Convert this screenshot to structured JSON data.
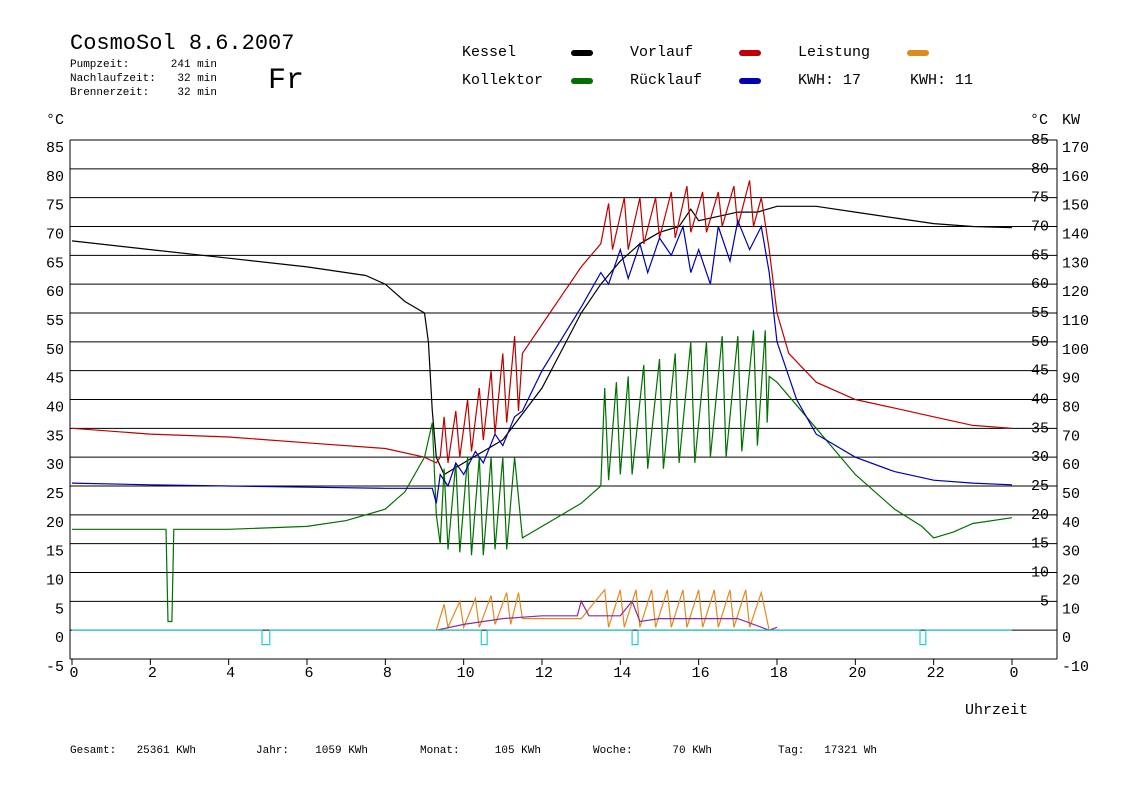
{
  "chart_data": {
    "type": "line",
    "title": "CosmoSol 8.6.2007",
    "weekday": "Fr",
    "info": [
      {
        "label": "Pumpzeit:",
        "value": "241 min"
      },
      {
        "label": "Nachlaufzeit:",
        "value": "32 min"
      },
      {
        "label": "Brennerzeit:",
        "value": "32 min"
      }
    ],
    "y_unit": "°C",
    "y2_unit": "KW",
    "x_label": "Uhrzeit",
    "kwh_labels": [
      {
        "text": "KWH: 17",
        "color": "#e08a1e"
      },
      {
        "text": "KWH: 11",
        "color": "#8b2aa0"
      }
    ],
    "footer": [
      {
        "label": "Gesamt:",
        "value": "25361 KWh"
      },
      {
        "label": "Jahr:",
        "value": "1059 KWh"
      },
      {
        "label": "Monat:",
        "value": "105 KWh"
      },
      {
        "label": "Woche:",
        "value": "70 KWh"
      },
      {
        "label": "Tag:",
        "value": "17321 Wh"
      }
    ],
    "xlim": [
      0,
      24
    ],
    "xticks": [
      0,
      2,
      4,
      6,
      8,
      10,
      12,
      14,
      16,
      18,
      20,
      22,
      {
        "value": 24,
        "label": "0"
      }
    ],
    "ylim": [
      -5,
      85
    ],
    "yticks": [
      -5,
      0,
      5,
      10,
      15,
      20,
      25,
      30,
      35,
      40,
      45,
      50,
      55,
      60,
      65,
      70,
      75,
      80,
      85
    ],
    "yticks_right": [
      5,
      10,
      15,
      20,
      25,
      30,
      35,
      40,
      45,
      50,
      55,
      60,
      65,
      70,
      75,
      80,
      85
    ],
    "y2lim": [
      -10,
      170
    ],
    "y2ticks": [
      -10,
      0,
      10,
      20,
      30,
      40,
      50,
      60,
      70,
      80,
      90,
      100,
      110,
      120,
      130,
      140,
      150,
      160,
      170
    ],
    "grid": true,
    "series": [
      {
        "name": "Kessel",
        "color": "#000000",
        "x": [
          0,
          2,
          4,
          6,
          7.5,
          8,
          8.5,
          9,
          9.1,
          9.2,
          9.3,
          9.5,
          10,
          11,
          12,
          13,
          13.5,
          14,
          14.5,
          15,
          15.5,
          15.8,
          16,
          17,
          17.5,
          18,
          19,
          20,
          21,
          22,
          23,
          24
        ],
        "values": [
          67.5,
          66,
          64.5,
          63,
          61.5,
          60,
          57,
          55,
          50,
          38,
          30,
          27,
          29,
          33,
          42,
          55,
          60,
          64,
          67,
          69,
          70,
          73,
          71,
          72.5,
          72.5,
          73.5,
          73.5,
          72.5,
          71.5,
          70.5,
          70,
          69.8
        ]
      },
      {
        "name": "Vorlauf",
        "color": "#c00000",
        "x": [
          0,
          2,
          4,
          6,
          8,
          9,
          9.3,
          9.4,
          9.5,
          9.6,
          9.8,
          9.9,
          10.1,
          10.2,
          10.4,
          10.5,
          10.7,
          10.8,
          11,
          11.1,
          11.3,
          11.4,
          11.5,
          12,
          12.5,
          13,
          13.5,
          13.7,
          13.8,
          14.1,
          14.2,
          14.5,
          14.6,
          14.9,
          15,
          15.3,
          15.4,
          15.7,
          15.8,
          16.1,
          16.2,
          16.5,
          16.6,
          16.9,
          17,
          17.3,
          17.4,
          17.6,
          17.8,
          18,
          18.3,
          19,
          20,
          21,
          22,
          23,
          24
        ],
        "values": [
          35,
          34,
          33.5,
          32.5,
          31.5,
          30,
          29,
          30,
          37,
          29,
          38,
          30,
          40,
          31,
          42,
          33,
          45,
          34,
          48,
          36,
          51,
          38,
          48,
          53,
          58,
          63,
          67,
          74,
          66,
          75,
          66,
          75,
          67,
          75,
          68,
          76,
          68,
          77,
          69,
          76,
          69,
          76,
          70,
          77,
          70,
          78,
          70,
          75,
          66,
          55,
          48,
          43,
          40,
          38.5,
          37,
          35.5,
          35
        ]
      },
      {
        "name": "Leistung",
        "color": "#e08a1e",
        "axis": "y2",
        "x": [
          9.3,
          9.5,
          9.6,
          9.9,
          10,
          10.3,
          10.4,
          10.7,
          10.8,
          11.1,
          11.2,
          11.4,
          11.5,
          12,
          13,
          13.6,
          13.7,
          14,
          14.1,
          14.4,
          14.5,
          14.8,
          14.9,
          15.2,
          15.3,
          15.6,
          15.7,
          16,
          16.1,
          16.4,
          16.5,
          16.8,
          16.9,
          17.2,
          17.3,
          17.6,
          17.8
        ],
        "values": [
          0,
          9,
          1,
          10,
          1,
          11,
          1,
          12,
          2,
          13,
          2,
          13,
          4,
          4,
          4,
          14,
          1,
          14,
          1,
          14,
          1,
          14,
          1,
          14,
          1,
          14,
          1,
          14,
          1,
          14,
          1,
          14,
          1,
          14,
          1,
          13,
          0
        ]
      },
      {
        "name": "Kollektor",
        "color": "#007000",
        "x": [
          0,
          2.4,
          2.45,
          2.55,
          2.6,
          4,
          6,
          7,
          8,
          8.5,
          9,
          9.2,
          9.3,
          9.4,
          9.5,
          9.6,
          9.8,
          9.9,
          10.1,
          10.2,
          10.4,
          10.5,
          10.7,
          10.8,
          11,
          11.1,
          11.3,
          11.5,
          12,
          13,
          13.5,
          13.6,
          13.7,
          13.9,
          14,
          14.2,
          14.3,
          14.6,
          14.7,
          15,
          15.1,
          15.4,
          15.5,
          15.8,
          15.9,
          16.2,
          16.3,
          16.6,
          16.7,
          17,
          17.1,
          17.4,
          17.5,
          17.7,
          17.75,
          17.8,
          18,
          19,
          20,
          21,
          21.7,
          22,
          22.5,
          23,
          24
        ],
        "values": [
          17.5,
          17.5,
          1.5,
          1.5,
          17.5,
          17.5,
          18,
          19,
          21,
          24,
          30,
          36,
          20,
          15,
          28,
          14,
          29,
          13.5,
          30,
          13,
          30,
          13,
          30,
          14,
          30,
          14,
          30,
          16,
          18,
          22,
          25,
          42,
          26,
          43,
          27,
          44,
          27,
          46,
          28,
          47,
          28,
          48,
          29,
          50,
          29,
          50,
          30,
          51,
          30,
          51,
          31,
          52,
          32,
          52,
          36,
          44,
          43,
          35,
          27,
          21,
          18,
          16,
          17,
          18.5,
          19.5
        ]
      },
      {
        "name": "Rücklauf",
        "color": "#0000b0",
        "x": [
          0,
          2,
          4,
          6,
          8,
          9.2,
          9.3,
          9.4,
          9.6,
          9.8,
          10,
          10.3,
          10.5,
          10.8,
          11,
          11.3,
          11.5,
          12,
          13,
          13.5,
          13.7,
          14,
          14.2,
          14.5,
          14.7,
          15,
          15.3,
          15.6,
          15.8,
          16,
          16.3,
          16.5,
          16.8,
          17,
          17.3,
          17.6,
          17.8,
          18,
          18.5,
          19,
          20,
          21,
          22,
          23,
          24
        ],
        "values": [
          25.5,
          25.2,
          25,
          24.8,
          24.6,
          24.6,
          22,
          27,
          25,
          29,
          27,
          31,
          29,
          34,
          32,
          37,
          38,
          45,
          56,
          62,
          60,
          66,
          61,
          67,
          62,
          68,
          65,
          70,
          62,
          66,
          60,
          70,
          64,
          71,
          66,
          70,
          62,
          50,
          40,
          34,
          30,
          27.5,
          26,
          25.5,
          25.2
        ]
      },
      {
        "color": "#8b2aa0",
        "axis": "y2",
        "x": [
          9.3,
          10,
          11,
          12,
          12.9,
          13,
          13.2,
          14,
          14.3,
          14.5,
          15,
          16,
          17,
          17.8,
          18
        ],
        "values": [
          0,
          2,
          4,
          5,
          5,
          10,
          5,
          5,
          10,
          3,
          4,
          4,
          4,
          0,
          1
        ]
      },
      {
        "color": "#20d0d0",
        "x": [
          0,
          4.85,
          4.85,
          5.05,
          5.05,
          10.45,
          10.45,
          10.6,
          10.6,
          14.3,
          14.3,
          14.45,
          14.45,
          21.65,
          21.65,
          21.8,
          21.8,
          24
        ],
        "values": [
          0,
          0,
          -2.5,
          -2.5,
          0,
          0,
          -2.5,
          -2.5,
          0,
          0,
          -2.5,
          -2.5,
          0,
          0,
          -2.5,
          -2.5,
          0,
          0
        ]
      }
    ]
  }
}
